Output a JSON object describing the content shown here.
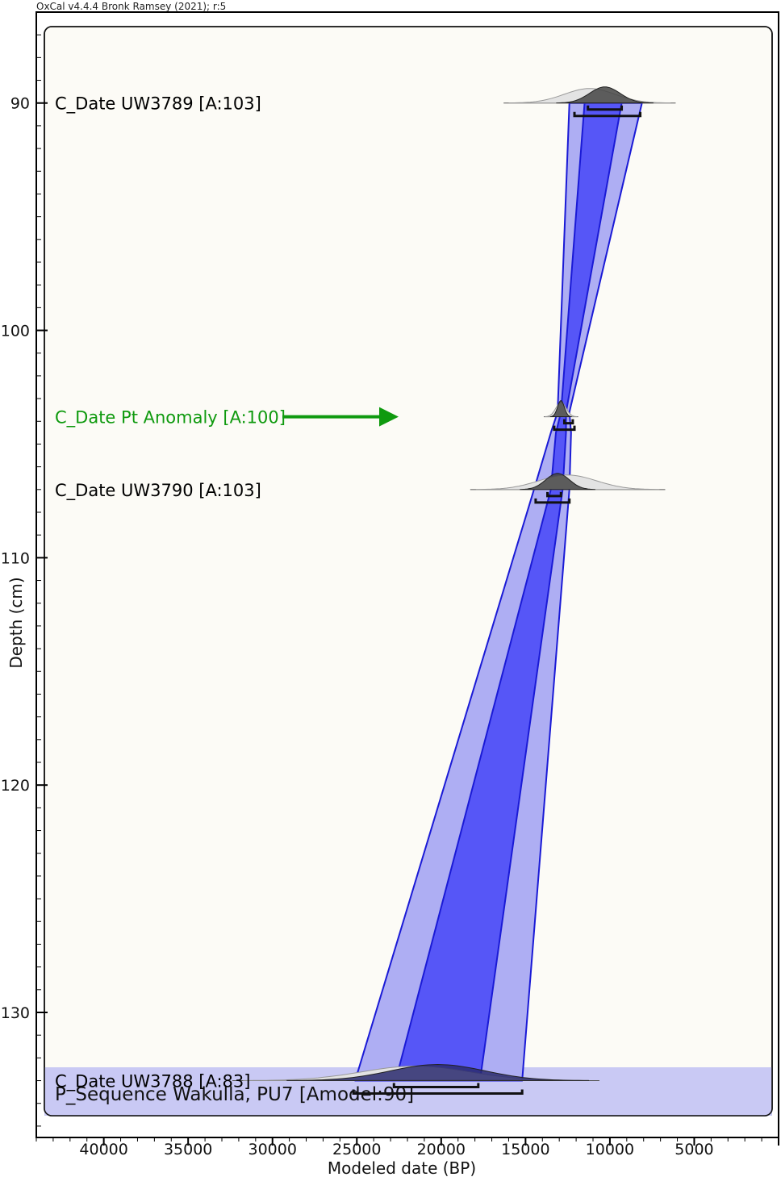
{
  "chart_data": {
    "type": "area",
    "credit": "OxCal v4.4.4 Bronk Ramsey (2021); r:5",
    "xlabel": "Modeled date (BP)",
    "ylabel": "Depth (cm)",
    "xlim": [
      44000,
      0
    ],
    "ylim": [
      86,
      135.5
    ],
    "x_ticks": [
      40000,
      35000,
      30000,
      25000,
      20000,
      15000,
      10000,
      5000
    ],
    "y_ticks": [
      90,
      100,
      110,
      120,
      130
    ],
    "sequence_label": "P_Sequence Wakulla, PU7 [Amodel:90]",
    "samples": [
      {
        "label": "C_Date UW3789 [A:103]",
        "depth": 90,
        "color": "#000000",
        "prior_peak": 11200,
        "prior_sd": 1500,
        "posterior_peak": 10300,
        "posterior_sd": 900,
        "range68": [
          11300,
          9300
        ],
        "range95": [
          12100,
          8200
        ]
      },
      {
        "label": "C_Date Pt Anomaly [A:100]",
        "depth": 103.8,
        "color": "#0f9a0f",
        "arrow": true,
        "prior_peak": 12900,
        "prior_sd": 300,
        "posterior_peak": 12900,
        "posterior_sd": 200,
        "range68": [
          12700,
          12200
        ],
        "range95": [
          13300,
          12100
        ]
      },
      {
        "label": "C_Date UW3790 [A:103]",
        "depth": 107,
        "color": "#000000",
        "prior_peak": 12500,
        "prior_sd": 1700,
        "posterior_peak": 13100,
        "posterior_sd": 700,
        "range68": [
          13700,
          12900
        ],
        "range95": [
          14400,
          12400
        ]
      },
      {
        "label": "C_Date UW3788 [A:83]",
        "depth": 133,
        "color": "#000000",
        "prior_peak": 21500,
        "prior_sd": 3200,
        "posterior_peak": 20200,
        "posterior_sd": 2800,
        "range68": [
          22800,
          17800
        ],
        "range95": [
          25200,
          15200
        ]
      }
    ],
    "envelope95": {
      "depth": [
        90,
        103.6,
        104.5,
        107,
        133
      ],
      "older": [
        12400,
        13100,
        13500,
        14500,
        25100
      ],
      "younger": [
        8100,
        12400,
        12300,
        12400,
        15200
      ]
    },
    "envelope68": {
      "depth": [
        90,
        103.6,
        104.5,
        107,
        133
      ],
      "older": [
        11500,
        12900,
        13200,
        13500,
        22700
      ],
      "younger": [
        9300,
        12600,
        12600,
        12800,
        17700
      ]
    }
  }
}
